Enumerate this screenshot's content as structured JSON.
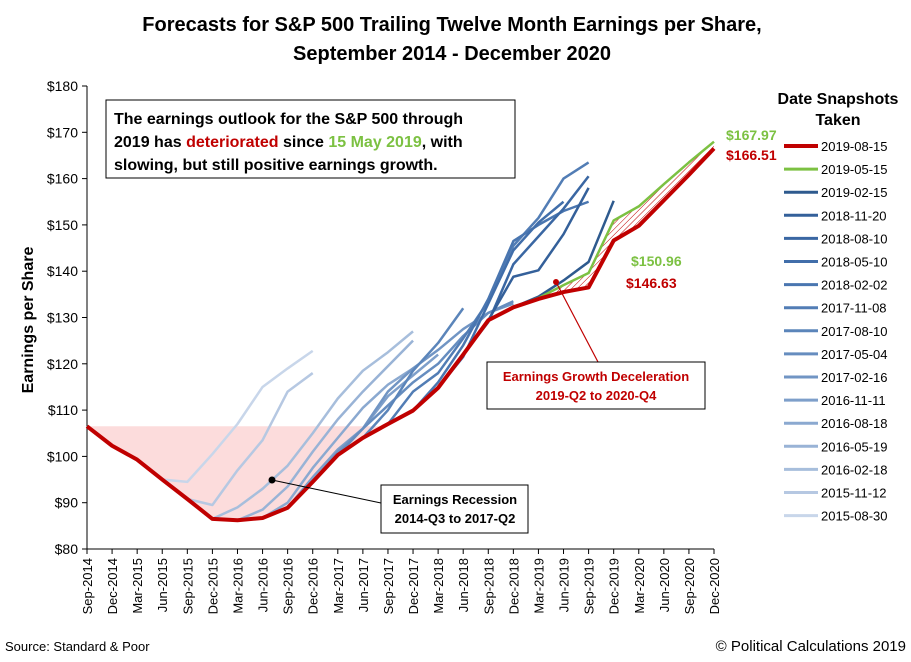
{
  "title_line1": "Forecasts for S&P 500 Trailing Twelve Month Earnings per Share,",
  "title_line2": "September 2014 - December 2020",
  "annotation": {
    "line1": "The earnings outlook for the S&P 500 through",
    "line2a": "2019 has ",
    "line2b": "deteriorated",
    "line2c": " since ",
    "line2d": "15 May 2019",
    "line2e": ", with",
    "line3": "slowing, but still positive earnings growth."
  },
  "deceleration_box": {
    "line1": "Earnings Growth Deceleration",
    "line2": "2019-Q2 to 2020-Q4"
  },
  "recession_box": {
    "line1": "Earnings Recession",
    "line2": "2014-Q3 to 2017-Q2"
  },
  "value_labels": {
    "v1": "$167.97",
    "v2": "$166.51",
    "v3": "$150.96",
    "v4": "$146.63"
  },
  "legend_title_line1": "Date Snapshots",
  "legend_title_line2": "Taken",
  "source": "Source: Standard  & Poor",
  "copyright": "© Political Calculations 2019",
  "colors": {
    "latest": "#c00000",
    "may2019": "#7cc142",
    "annotation_red": "#c00000",
    "annotation_green": "#7cc142",
    "recession_fill": "#fbd3d3"
  },
  "chart_data": {
    "type": "line",
    "ylabel": "Earnings per Share",
    "ylim": [
      80,
      180
    ],
    "y_ticks": [
      "$80",
      "$90",
      "$100",
      "$110",
      "$120",
      "$130",
      "$140",
      "$150",
      "$160",
      "$170",
      "$180"
    ],
    "x_tick_labels": [
      "Sep-2014",
      "Dec-2014",
      "Mar-2015",
      "Jun-2015",
      "Sep-2015",
      "Dec-2015",
      "Mar-2016",
      "Jun-2016",
      "Sep-2016",
      "Dec-2016",
      "Mar-2017",
      "Jun-2017",
      "Sep-2017",
      "Dec-2017",
      "Mar-2018",
      "Jun-2018",
      "Sep-2018",
      "Dec-2018",
      "Mar-2019",
      "Jun-2019",
      "Sep-2019",
      "Dec-2019",
      "Mar-2020",
      "Jun-2020",
      "Sep-2020",
      "Dec-2020"
    ],
    "legend_position": "right",
    "grid": false,
    "actual": [
      106.5,
      102.3,
      99.3,
      95.0,
      90.8,
      86.5,
      86.2,
      86.7,
      88.9,
      94.5,
      100.3,
      104.0,
      107.0,
      109.9,
      114.8,
      122.0,
      129.4,
      132.2
    ],
    "forecasts": [
      {
        "name": "2019-08-15",
        "x_start": 17,
        "values": [
          132.2,
          134.0,
          135.5,
          136.5,
          146.63,
          149.8,
          155.3,
          160.8,
          166.51
        ],
        "color": "#c00000",
        "width": 4
      },
      {
        "name": "2019-05-15",
        "x_start": 17,
        "values": [
          132.2,
          134.2,
          137.0,
          139.6,
          150.96,
          154.0,
          158.8,
          163.5,
          167.97
        ],
        "color": "#7cc142",
        "width": 2.5
      },
      {
        "name": "2019-02-15",
        "x_start": 17,
        "values": [
          132.2,
          134.5,
          138.0,
          142.0,
          155.2
        ],
        "color": "#2e5a8e",
        "width": 2.5
      },
      {
        "name": "2018-11-20",
        "x_start": 16,
        "values": [
          129.4,
          138.8,
          140.2,
          148.0,
          158.0
        ],
        "color": "#34609a",
        "width": 2.5
      },
      {
        "name": "2018-08-10",
        "x_start": 15,
        "values": [
          122.0,
          129.0,
          141.5,
          147.5,
          153.5,
          160.5
        ],
        "color": "#3a67a3",
        "width": 2.5
      },
      {
        "name": "2018-05-10",
        "x_start": 14,
        "values": [
          114.8,
          121.5,
          133.0,
          144.5,
          150.5,
          155.0
        ],
        "color": "#416eaa",
        "width": 2.5
      },
      {
        "name": "2018-02-02",
        "x_start": 13,
        "values": [
          109.9,
          116.0,
          124.0,
          134.0,
          146.5,
          150.0,
          153.0,
          155.0
        ],
        "color": "#4a76b0",
        "width": 2.5
      },
      {
        "name": "2017-11-08",
        "x_start": 12,
        "values": [
          107.0,
          114.0,
          118.0,
          125.5,
          133.5,
          145.5,
          151.5,
          160.0,
          163.5
        ],
        "color": "#527db5",
        "width": 2.5
      },
      {
        "name": "2017-08-10",
        "x_start": 11,
        "values": [
          104.0,
          110.0,
          118.5,
          124.5,
          132.0
        ],
        "color": "#5b85ba",
        "width": 2.5
      },
      {
        "name": "2017-05-04",
        "x_start": 10,
        "values": [
          100.3,
          106.0,
          111.0,
          116.0,
          120.0,
          126.0,
          131.0,
          133.5
        ],
        "color": "#668dbf",
        "width": 2.5
      },
      {
        "name": "2017-02-16",
        "x_start": 9,
        "values": [
          94.5,
          101.0,
          106.0,
          114.0,
          119.0,
          123.0,
          127.5,
          131.0,
          133.0
        ],
        "color": "#7195c4",
        "width": 2.5
      },
      {
        "name": "2016-11-11",
        "x_start": 8,
        "values": [
          88.9,
          95.5,
          101.5,
          106.0,
          113.0,
          117.5,
          122.0
        ],
        "color": "#7e9fca",
        "width": 2.5
      },
      {
        "name": "2016-08-18",
        "x_start": 7,
        "values": [
          86.7,
          90.0,
          97.5,
          104.0,
          110.5,
          115.5,
          119.0
        ],
        "color": "#8ba9d0",
        "width": 2.5
      },
      {
        "name": "2016-05-19",
        "x_start": 6,
        "values": [
          86.2,
          88.5,
          93.5,
          101.0,
          108.0,
          114.0,
          119.5,
          125.0
        ],
        "color": "#99b3d6",
        "width": 2.5
      },
      {
        "name": "2016-02-18",
        "x_start": 5,
        "values": [
          86.5,
          89.0,
          93.0,
          98.0,
          105.0,
          112.5,
          118.5,
          122.5,
          127.0
        ],
        "color": "#a7bedc",
        "width": 2.5
      },
      {
        "name": "2015-11-12",
        "x_start": 4,
        "values": [
          90.8,
          89.5,
          97.0,
          103.5,
          114.0,
          118.0
        ],
        "color": "#b6c8e2",
        "width": 2.5
      },
      {
        "name": "2015-08-30",
        "x_start": 3,
        "values": [
          95.0,
          94.5,
          100.5,
          107.0,
          115.0,
          119.0,
          122.8
        ],
        "color": "#c8d6ea",
        "width": 2.5
      }
    ]
  }
}
